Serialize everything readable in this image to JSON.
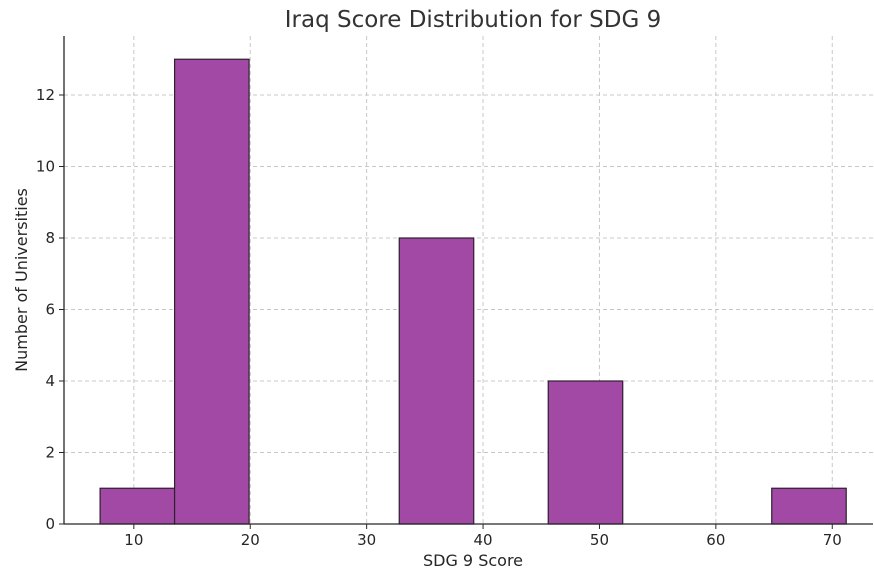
{
  "chart_data": {
    "type": "bar",
    "title": "Iraq Score Distribution for SDG 9",
    "xlabel": "SDG 9 Score",
    "ylabel": "Number of Universities",
    "xlim": [
      4,
      73.5
    ],
    "ylim": [
      0,
      13.65
    ],
    "xticks": [
      10,
      20,
      30,
      40,
      50,
      60,
      70
    ],
    "yticks": [
      0,
      2,
      4,
      6,
      8,
      10,
      12
    ],
    "bins": [
      {
        "start": 7.1,
        "end": 13.5,
        "count": 1
      },
      {
        "start": 13.5,
        "end": 19.9,
        "count": 13
      },
      {
        "start": 19.9,
        "end": 26.4,
        "count": 0
      },
      {
        "start": 26.4,
        "end": 32.8,
        "count": 0
      },
      {
        "start": 32.8,
        "end": 39.2,
        "count": 8
      },
      {
        "start": 39.2,
        "end": 45.6,
        "count": 0
      },
      {
        "start": 45.6,
        "end": 52.0,
        "count": 4
      },
      {
        "start": 52.0,
        "end": 58.4,
        "count": 0
      },
      {
        "start": 58.4,
        "end": 64.8,
        "count": 0
      },
      {
        "start": 64.8,
        "end": 71.2,
        "count": 1
      }
    ],
    "bar_color": "#a149a4",
    "grid": true
  }
}
